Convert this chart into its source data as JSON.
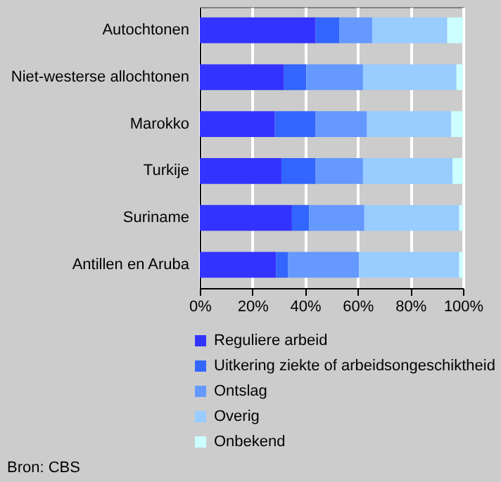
{
  "chart_data": {
    "type": "bar",
    "orientation": "horizontal",
    "stacked": true,
    "categories": [
      "Autochtonen",
      "Niet-westerse allochtonen",
      "Marokko",
      "Turkije",
      "Suriname",
      "Antillen en Aruba"
    ],
    "series": [
      {
        "name": "Reguliere arbeid",
        "color": "#3333ff",
        "values": [
          44,
          32,
          28.5,
          31,
          35,
          29
        ]
      },
      {
        "name": "Uitkering ziekte of arbeidsongeschiktheid",
        "color": "#3366ff",
        "values": [
          9,
          8.5,
          15.5,
          13,
          6.5,
          4.5
        ]
      },
      {
        "name": "Ontslag",
        "color": "#6699ff",
        "values": [
          12.5,
          21.5,
          19.5,
          18,
          21,
          27
        ]
      },
      {
        "name": "Overig",
        "color": "#99ccff",
        "values": [
          28.5,
          35.5,
          32,
          34,
          36,
          38
        ]
      },
      {
        "name": "Onbekend",
        "color": "#ccffff",
        "values": [
          6,
          2.5,
          4.5,
          4,
          1.5,
          1.5
        ]
      }
    ],
    "xlim": [
      0,
      100
    ],
    "xticks": [
      {
        "value": 0,
        "label": "0%"
      },
      {
        "value": 20,
        "label": "20%"
      },
      {
        "value": 40,
        "label": "40%"
      },
      {
        "value": 60,
        "label": "60%"
      },
      {
        "value": 80,
        "label": "80%"
      },
      {
        "value": 100,
        "label": "100%"
      }
    ],
    "grid": "x",
    "legend": "bottom",
    "annotations": [
      "Bron: CBS"
    ]
  }
}
